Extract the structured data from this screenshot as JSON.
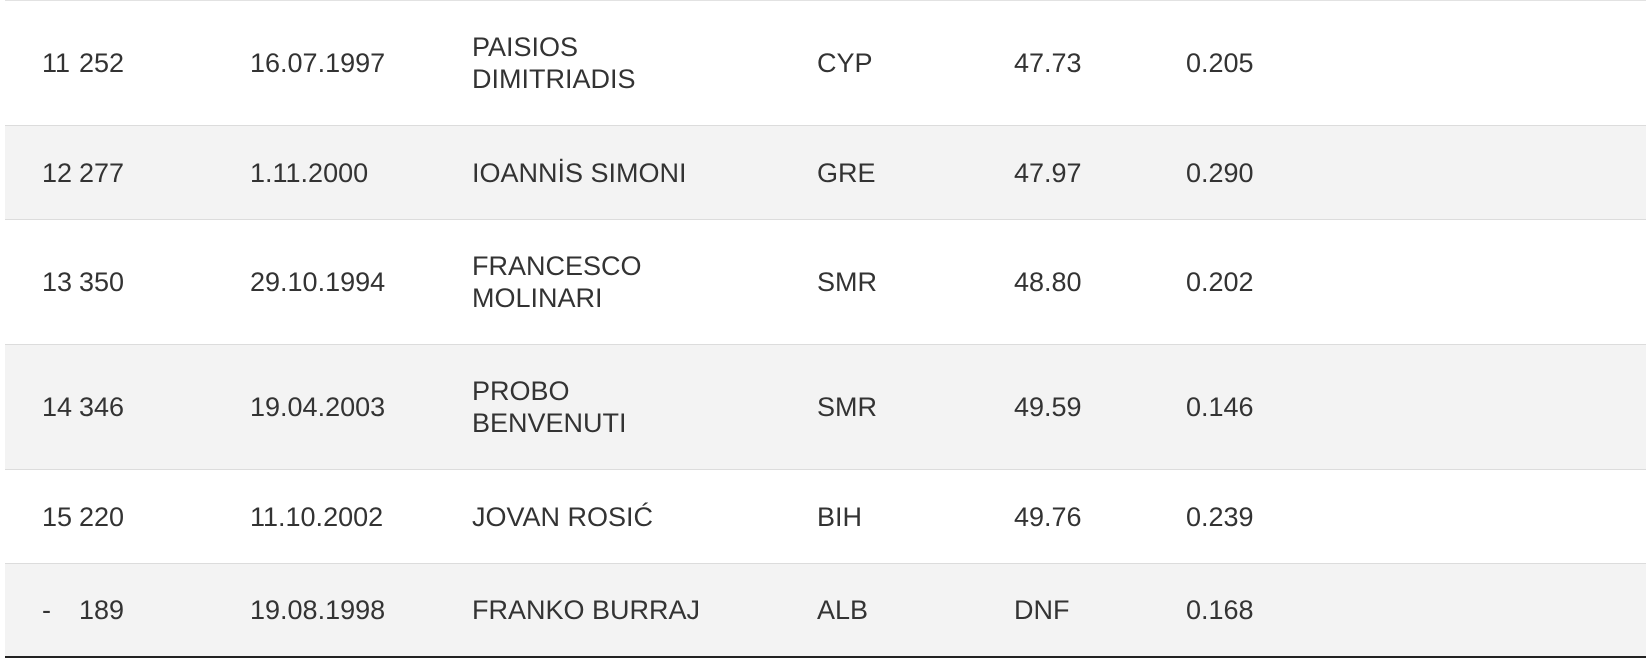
{
  "table": {
    "rows": [
      [
        "11",
        "252",
        "16.07.1997",
        "PAISIOS DIMITRIADIS",
        "CYP",
        "47.73",
        "0.205"
      ],
      [
        "12",
        "277",
        "1.11.2000",
        "IOANNİS SIMONI",
        "GRE",
        "47.97",
        "0.290"
      ],
      [
        "13",
        "350",
        "29.10.1994",
        "FRANCESCO MOLINARI",
        "SMR",
        "48.80",
        "0.202"
      ],
      [
        "14",
        "346",
        "19.04.2003",
        "PROBO BENVENUTI",
        "SMR",
        "49.59",
        "0.146"
      ],
      [
        "15",
        "220",
        "11.10.2002",
        "JOVAN ROSIĆ",
        "BIH",
        "49.76",
        "0.239"
      ],
      [
        "-",
        "189",
        "19.08.1998",
        "FRANKO BURRAJ",
        "ALB",
        "DNF",
        "0.168"
      ]
    ]
  }
}
